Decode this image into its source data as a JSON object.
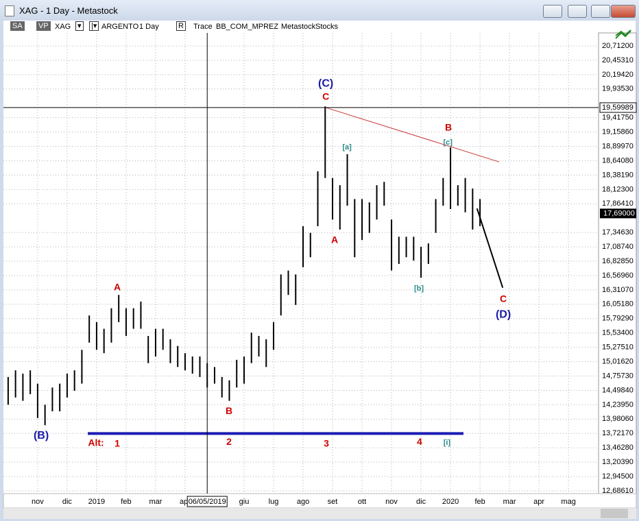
{
  "window": {
    "title": "XAG - 1 Day - Metastock",
    "toolbar": [
      "SA",
      "VP",
      "XAG",
      "ARGENTO",
      "1 Day",
      "R",
      "Trace",
      "BB_COM_MPREZ",
      "Metastock",
      "Stocks"
    ]
  },
  "chart_data": {
    "type": "range_bar",
    "color": "#000000",
    "grid": true,
    "xlim": [
      -1.16,
      19.02
    ],
    "xticks": [
      {
        "value": 0,
        "label": "nov"
      },
      {
        "value": 1,
        "label": "dic"
      },
      {
        "value": 2,
        "label": "2019"
      },
      {
        "value": 3,
        "label": "feb"
      },
      {
        "value": 4,
        "label": "mar"
      },
      {
        "value": 5,
        "label": "apr"
      },
      {
        "value": 7,
        "label": "giu"
      },
      {
        "value": 8,
        "label": "lug"
      },
      {
        "value": 9,
        "label": "ago"
      },
      {
        "value": 10,
        "label": "set"
      },
      {
        "value": 11,
        "label": "ott"
      },
      {
        "value": 12,
        "label": "nov"
      },
      {
        "value": 13,
        "label": "dic"
      },
      {
        "value": 14,
        "label": "2020"
      },
      {
        "value": 15,
        "label": "feb"
      },
      {
        "value": 16,
        "label": "mar"
      },
      {
        "value": 17,
        "label": "apr"
      },
      {
        "value": 18,
        "label": "mag"
      }
    ],
    "ylim": [
      12.6861,
      20.712
    ],
    "yticks": [
      {
        "value": 20.712,
        "label": "20,71200"
      },
      {
        "value": 20.4531,
        "label": "20,45310"
      },
      {
        "value": 20.1942,
        "label": "20,19420"
      },
      {
        "value": 19.9353,
        "label": "19,93530"
      },
      {
        "value": 19.4175,
        "label": "19,41750"
      },
      {
        "value": 19.1586,
        "label": "19,15860"
      },
      {
        "value": 18.8997,
        "label": "18,89970"
      },
      {
        "value": 18.6408,
        "label": "18,64080"
      },
      {
        "value": 18.3819,
        "label": "18,38190"
      },
      {
        "value": 18.123,
        "label": "18,12300"
      },
      {
        "value": 17.8641,
        "label": "17,86410"
      },
      {
        "value": 17.3463,
        "label": "17,34630"
      },
      {
        "value": 17.0874,
        "label": "17,08740"
      },
      {
        "value": 16.8285,
        "label": "16,82850"
      },
      {
        "value": 16.5696,
        "label": "16,56960"
      },
      {
        "value": 16.3107,
        "label": "16,31070"
      },
      {
        "value": 16.0518,
        "label": "16,05180"
      },
      {
        "value": 15.7929,
        "label": "15,79290"
      },
      {
        "value": 15.534,
        "label": "15,53400"
      },
      {
        "value": 15.2751,
        "label": "15,27510"
      },
      {
        "value": 15.0162,
        "label": "15,01620"
      },
      {
        "value": 14.7573,
        "label": "14,75730"
      },
      {
        "value": 14.4984,
        "label": "14,49840"
      },
      {
        "value": 14.2395,
        "label": "14,23950"
      },
      {
        "value": 13.9806,
        "label": "13,98060"
      },
      {
        "value": 13.7217,
        "label": "13,72170"
      },
      {
        "value": 13.4628,
        "label": "13,46280"
      },
      {
        "value": 13.2039,
        "label": "13,20390"
      },
      {
        "value": 12.945,
        "label": "12,94500"
      },
      {
        "value": 12.6861,
        "label": "12,68610"
      }
    ],
    "x": [
      -1,
      -0.75,
      -0.5,
      -0.25,
      0,
      0.25,
      0.5,
      0.75,
      1,
      1.25,
      1.5,
      1.75,
      2,
      2.25,
      2.5,
      2.75,
      3,
      3.25,
      3.5,
      3.75,
      4,
      4.25,
      4.5,
      4.75,
      5,
      5.25,
      5.5,
      5.75,
      6,
      6.25,
      6.5,
      6.75,
      7,
      7.25,
      7.5,
      7.75,
      8,
      8.25,
      8.5,
      8.75,
      9,
      9.25,
      9.5,
      9.75,
      10,
      10.25,
      10.5,
      10.75,
      11,
      11.25,
      11.5,
      11.75,
      12,
      12.25,
      12.5,
      12.75,
      13,
      13.25,
      13.5,
      13.75,
      14,
      14.25,
      14.5,
      14.75,
      15
    ],
    "high": [
      14.74,
      14.86,
      14.8,
      14.86,
      14.62,
      14.24,
      14.55,
      14.62,
      14.8,
      14.86,
      15.23,
      15.85,
      15.73,
      15.61,
      15.98,
      16.22,
      15.98,
      15.98,
      16.1,
      15.48,
      15.61,
      15.61,
      15.42,
      15.3,
      15.17,
      15.11,
      15.11,
      14.99,
      14.92,
      14.74,
      14.68,
      15.05,
      15.11,
      15.54,
      15.48,
      15.42,
      15.73,
      16.59,
      16.66,
      16.59,
      17.46,
      17.34,
      18.45,
      19.62,
      18.33,
      18.2,
      18.76,
      17.95,
      17.95,
      17.89,
      18.2,
      18.26,
      17.58,
      17.27,
      17.27,
      17.27,
      17.09,
      17.15,
      17.95,
      18.33,
      18.88,
      18.2,
      18.33,
      18.14,
      17.95
    ],
    "low": [
      14.24,
      14.37,
      14.31,
      14.43,
      14.0,
      13.87,
      14.12,
      14.12,
      14.37,
      14.49,
      14.62,
      15.36,
      15.23,
      15.17,
      15.36,
      15.73,
      15.48,
      15.61,
      15.61,
      14.99,
      15.11,
      15.23,
      14.99,
      14.92,
      14.86,
      14.8,
      14.74,
      14.55,
      14.62,
      14.37,
      14.31,
      14.55,
      14.62,
      14.99,
      15.11,
      14.92,
      15.23,
      15.85,
      16.22,
      16.04,
      16.72,
      16.9,
      17.46,
      18.33,
      17.58,
      17.4,
      17.83,
      16.9,
      17.21,
      17.34,
      17.58,
      17.83,
      16.66,
      16.78,
      16.9,
      16.84,
      16.53,
      16.78,
      17.34,
      17.83,
      17.77,
      17.83,
      17.71,
      17.4,
      17.46
    ],
    "last": {
      "value": 17.69,
      "label": "17,69000"
    },
    "cursor": {
      "x": 5.75,
      "x_label": "06/05/2019",
      "y": 19.59989,
      "y_label": "19,59989"
    },
    "lines": [
      {
        "x1": 9.77,
        "y1": 19.6,
        "x2": 15.65,
        "y2": 18.62,
        "color": "#c83232"
      },
      {
        "x1": 14.9,
        "y1": 17.78,
        "x2": 15.77,
        "y2": 16.35,
        "color": "#000000"
      },
      {
        "x1": 1.7,
        "y1": 13.72,
        "x2": 14.44,
        "y2": 13.72,
        "color": "#1c1cb4"
      }
    ],
    "annotations": [
      {
        "text": "(C)",
        "color": "#1a1aa8",
        "x": 9.77,
        "y": 20.03
      },
      {
        "text": "C",
        "color": "#d00000",
        "x": 9.77,
        "y": 19.79
      },
      {
        "text": "[a]",
        "color": "#2a8a8a",
        "x": 10.49,
        "y": 18.88
      },
      {
        "text": "A",
        "color": "#d00000",
        "x": 10.07,
        "y": 17.2
      },
      {
        "text": "[b]",
        "color": "#2a8a8a",
        "x": 12.93,
        "y": 16.33
      },
      {
        "text": "B",
        "color": "#d00000",
        "x": 13.93,
        "y": 19.23
      },
      {
        "text": "[c]",
        "color": "#2a8a8a",
        "x": 13.91,
        "y": 18.97
      },
      {
        "text": "C",
        "color": "#d00000",
        "x": 15.79,
        "y": 16.14
      },
      {
        "text": "(D)",
        "color": "#1a1aa8",
        "x": 15.79,
        "y": 15.86
      },
      {
        "text": "A",
        "color": "#d00000",
        "x": 2.7,
        "y": 16.35
      },
      {
        "text": "B",
        "color": "#d00000",
        "x": 6.49,
        "y": 14.12
      },
      {
        "text": "(B)",
        "color": "#1a1aa8",
        "x": 0.12,
        "y": 13.68
      },
      {
        "text": "Alt:",
        "color": "#d00000",
        "x": 1.98,
        "y": 13.54
      },
      {
        "text": "1",
        "color": "#d00000",
        "x": 2.7,
        "y": 13.53
      },
      {
        "text": "2",
        "color": "#d00000",
        "x": 6.49,
        "y": 13.56
      },
      {
        "text": "3",
        "color": "#d00000",
        "x": 9.79,
        "y": 13.53
      },
      {
        "text": "4",
        "color": "#d00000",
        "x": 12.95,
        "y": 13.56
      },
      {
        "text": "[i]",
        "color": "#2a8a8a",
        "x": 13.88,
        "y": 13.55
      }
    ]
  }
}
